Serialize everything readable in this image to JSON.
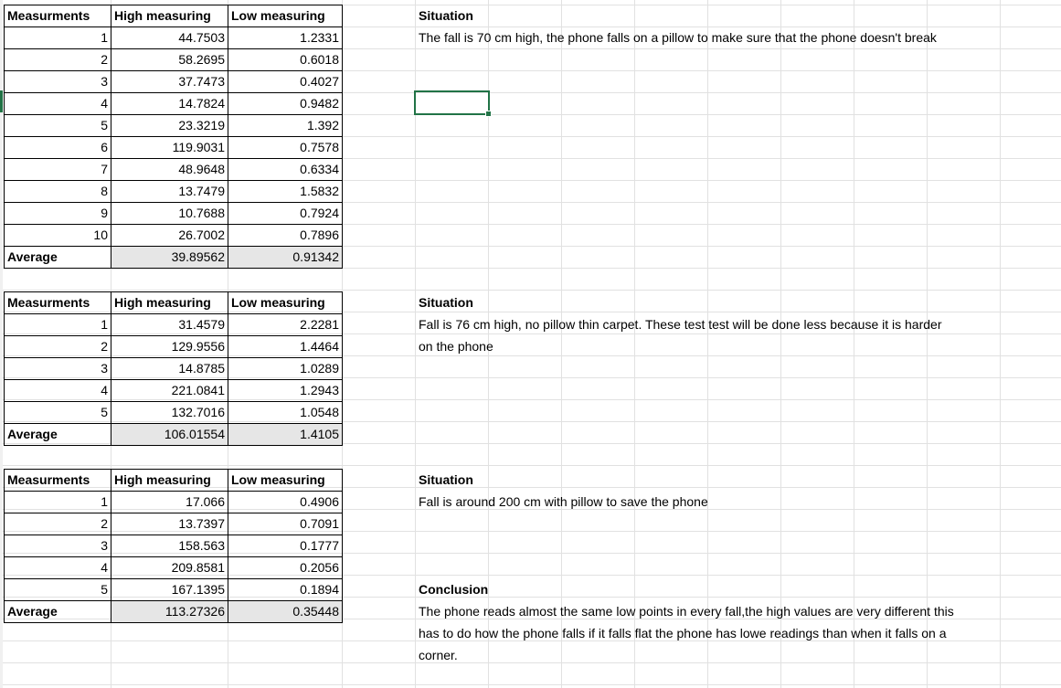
{
  "tables": [
    {
      "headers": [
        "Measurments",
        "High measuring",
        "Low measuring"
      ],
      "rows": [
        [
          "1",
          "44.7503",
          "1.2331"
        ],
        [
          "2",
          "58.2695",
          "0.6018"
        ],
        [
          "3",
          "37.7473",
          "0.4027"
        ],
        [
          "4",
          "14.7824",
          "0.9482"
        ],
        [
          "5",
          "23.3219",
          "1.392"
        ],
        [
          "6",
          "119.9031",
          "0.7578"
        ],
        [
          "7",
          "48.9648",
          "0.6334"
        ],
        [
          "8",
          "13.7479",
          "1.5832"
        ],
        [
          "9",
          "10.7688",
          "0.7924"
        ],
        [
          "10",
          "26.7002",
          "0.7896"
        ]
      ],
      "average": [
        "Average",
        "39.89562",
        "0.91342"
      ]
    },
    {
      "headers": [
        "Measurments",
        "High measuring",
        "Low measuring"
      ],
      "rows": [
        [
          "1",
          "31.4579",
          "2.2281"
        ],
        [
          "2",
          "129.9556",
          "1.4464"
        ],
        [
          "3",
          "14.8785",
          "1.0289"
        ],
        [
          "4",
          "221.0841",
          "1.2943"
        ],
        [
          "5",
          "132.7016",
          "1.0548"
        ]
      ],
      "average": [
        "Average",
        "106.01554",
        "1.4105"
      ]
    },
    {
      "headers": [
        "Measurments",
        "High measuring",
        "Low measuring"
      ],
      "rows": [
        [
          "1",
          "17.066",
          "0.4906"
        ],
        [
          "2",
          "13.7397",
          "0.7091"
        ],
        [
          "3",
          "158.563",
          "0.1777"
        ],
        [
          "4",
          "209.8581",
          "0.2056"
        ],
        [
          "5",
          "167.1395",
          "0.1894"
        ]
      ],
      "average": [
        "Average",
        "113.27326",
        "0.35448"
      ]
    }
  ],
  "notes": {
    "situation1_title": "Situation",
    "situation1_text": "The fall is 70 cm high, the phone falls on a pillow to make sure that the phone doesn't break",
    "situation2_title": "Situation",
    "situation2_line1": "Fall is 76 cm high, no pillow thin carpet. These test test will be done less because it is harder",
    "situation2_line2": "on the phone",
    "situation3_title": "Situation",
    "situation3_text": "Fall is around 200 cm with pillow to save the phone",
    "conclusion_title": "Conclusion",
    "conclusion_line1": "The phone reads almost the same low points in every fall,the high values are very different this",
    "conclusion_line2": "has to do how the phone falls if it falls flat the phone has lowe readings than when it falls on a",
    "conclusion_line3": "corner."
  },
  "colors": {
    "gridline": "#e1e1e1",
    "selection": "#217346",
    "average_fill": "#e6e6e6"
  }
}
